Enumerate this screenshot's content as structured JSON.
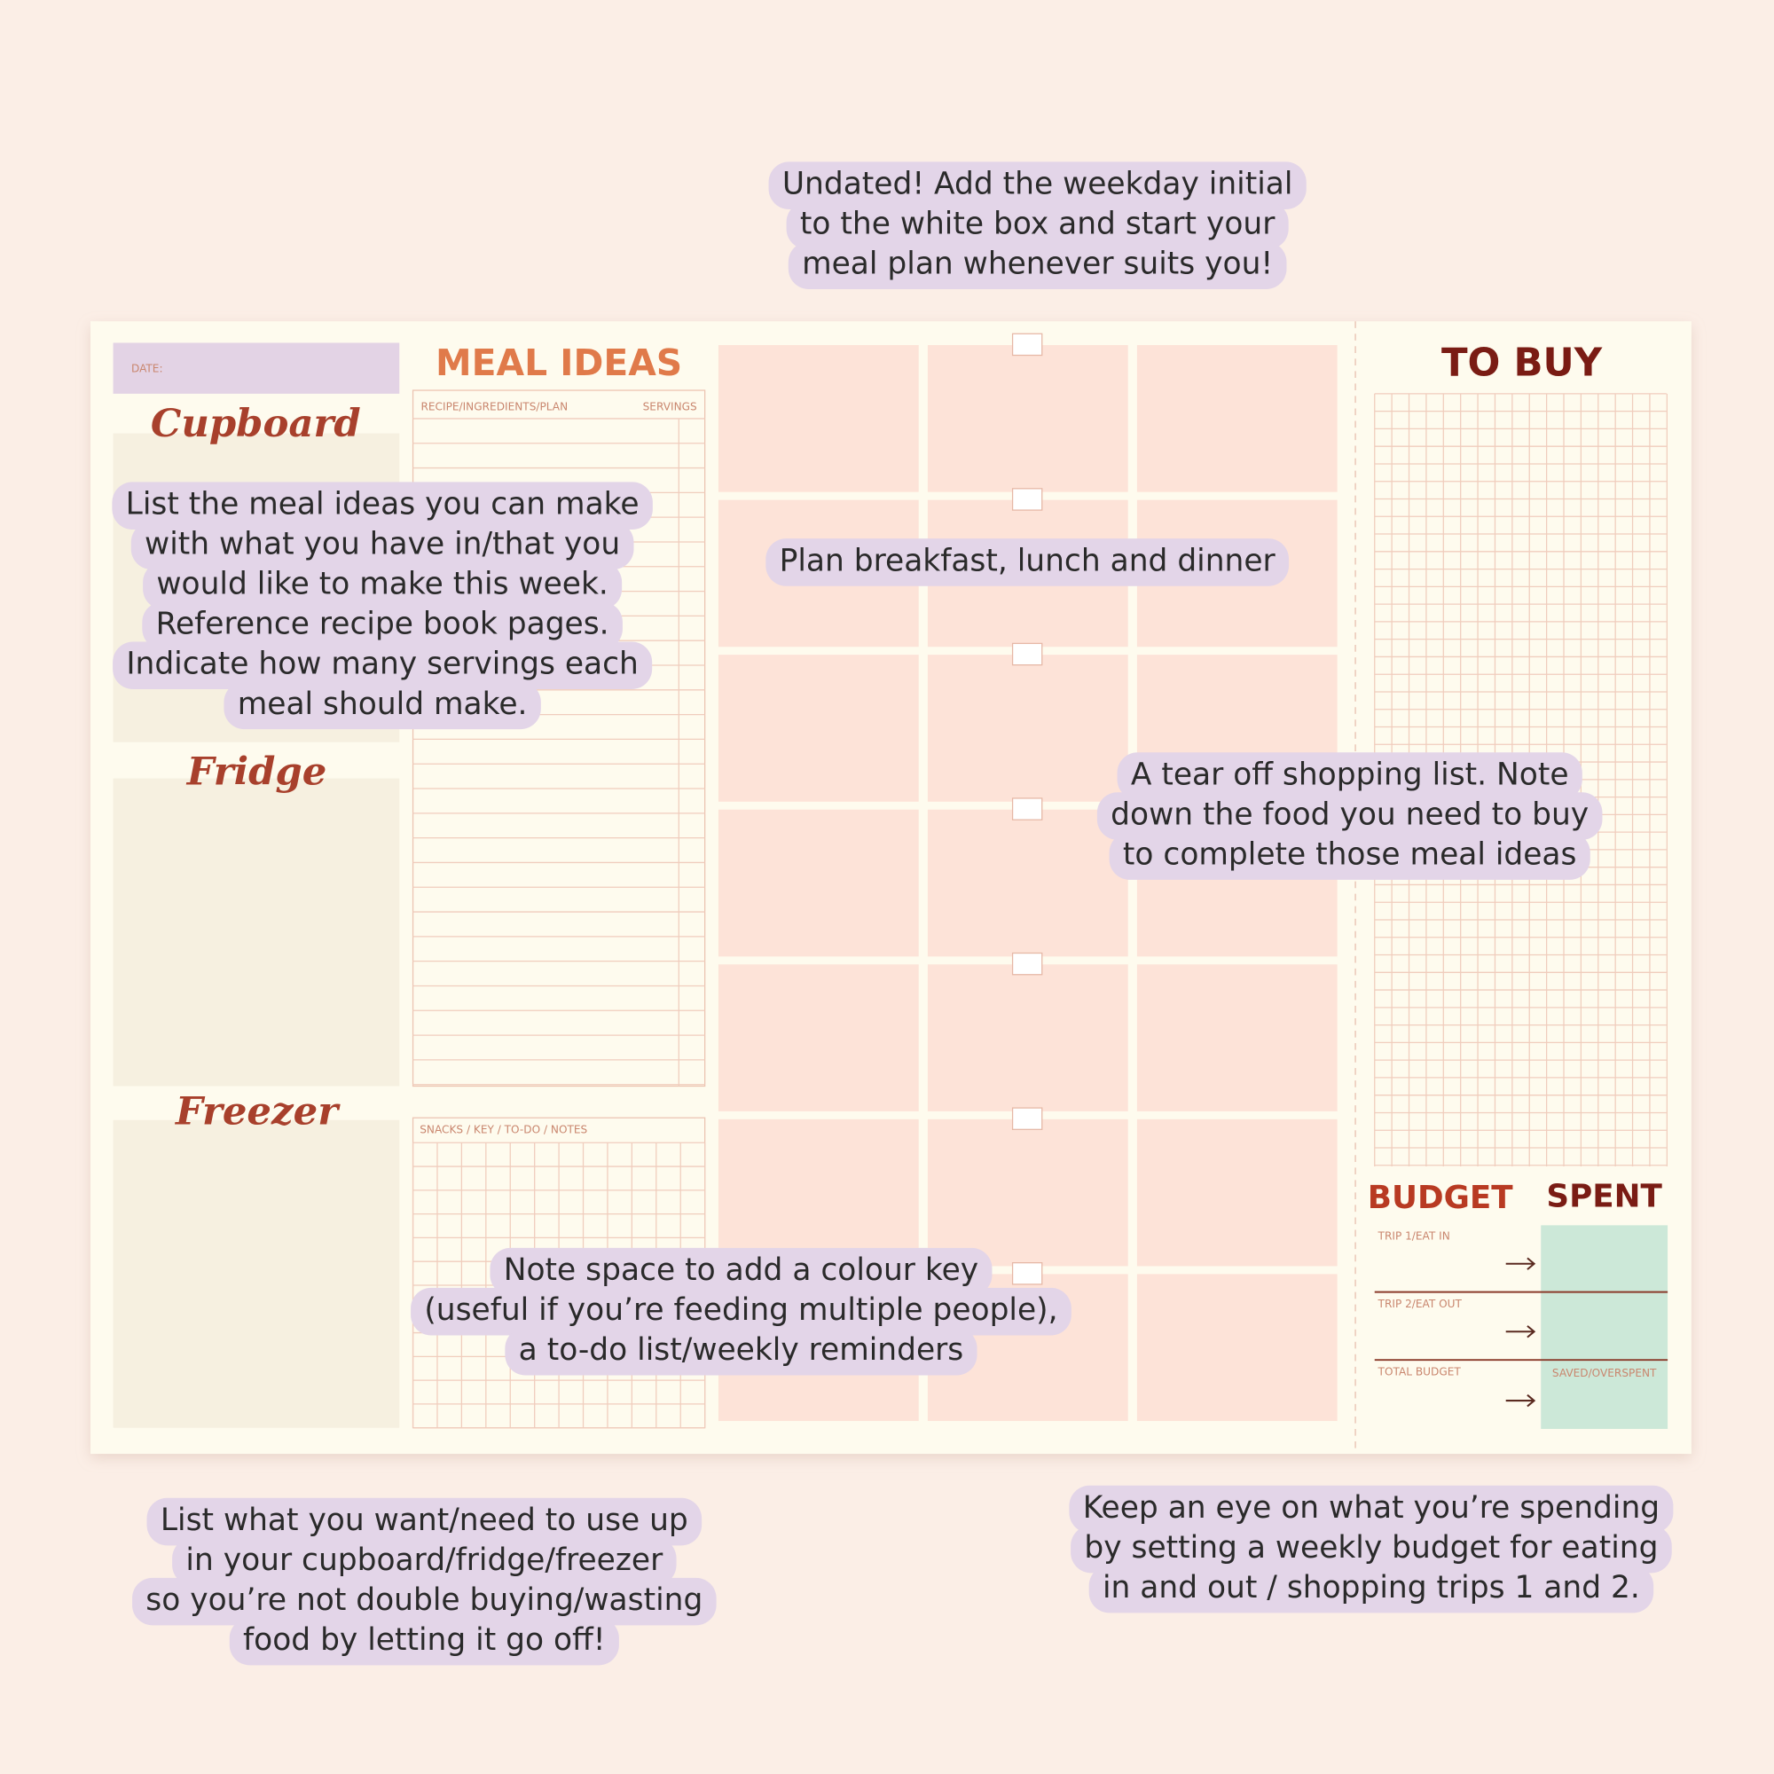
{
  "planner": {
    "date_label": "DATE:",
    "cupboard": "Cupboard",
    "fridge": "Fridge",
    "freezer": "Freezer",
    "meal_ideas": "MEAL IDEAS",
    "recipe_header": "RECIPE/INGREDIENTS/PLAN",
    "servings_header": "SERVINGS",
    "notes_header": "SNACKS / KEY / TO-DO / NOTES",
    "to_buy": "TO BUY",
    "budget": "BUDGET",
    "spent": "SPENT",
    "trip1": "TRIP 1/EAT IN",
    "trip2": "TRIP 2/EAT OUT",
    "total_budget": "TOTAL BUDGET",
    "saved_overspent": "SAVED/OVERSPENT"
  },
  "annotations": [
    {
      "lines": [
        "Undated! Add the weekday initial",
        "to the white box and start your",
        "meal plan whenever suits you!"
      ]
    },
    {
      "lines": [
        "List the meal ideas you can make",
        "with what you have in/that you",
        "would like to make this week.",
        "Reference recipe book pages.",
        "Indicate how many servings each",
        "meal should make."
      ]
    },
    {
      "lines": [
        "Plan breakfast, lunch and dinner"
      ]
    },
    {
      "lines": [
        "A tear off shopping list. Note",
        "down the food you need to buy",
        "to complete those meal ideas"
      ]
    },
    {
      "lines": [
        "Note space to add a colour key",
        "(useful if you’re feeding multiple people),",
        "a to-do list/weekly reminders"
      ]
    },
    {
      "lines": [
        "List what you want/need to use up",
        "in your cupboard/fridge/freezer",
        "so you’re not double buying/wasting",
        "food by letting it go off!"
      ]
    },
    {
      "lines": [
        "Keep an eye on what you’re spending",
        "by setting a weekly budget for eating",
        "in and out / shopping trips 1 and 2."
      ]
    }
  ]
}
